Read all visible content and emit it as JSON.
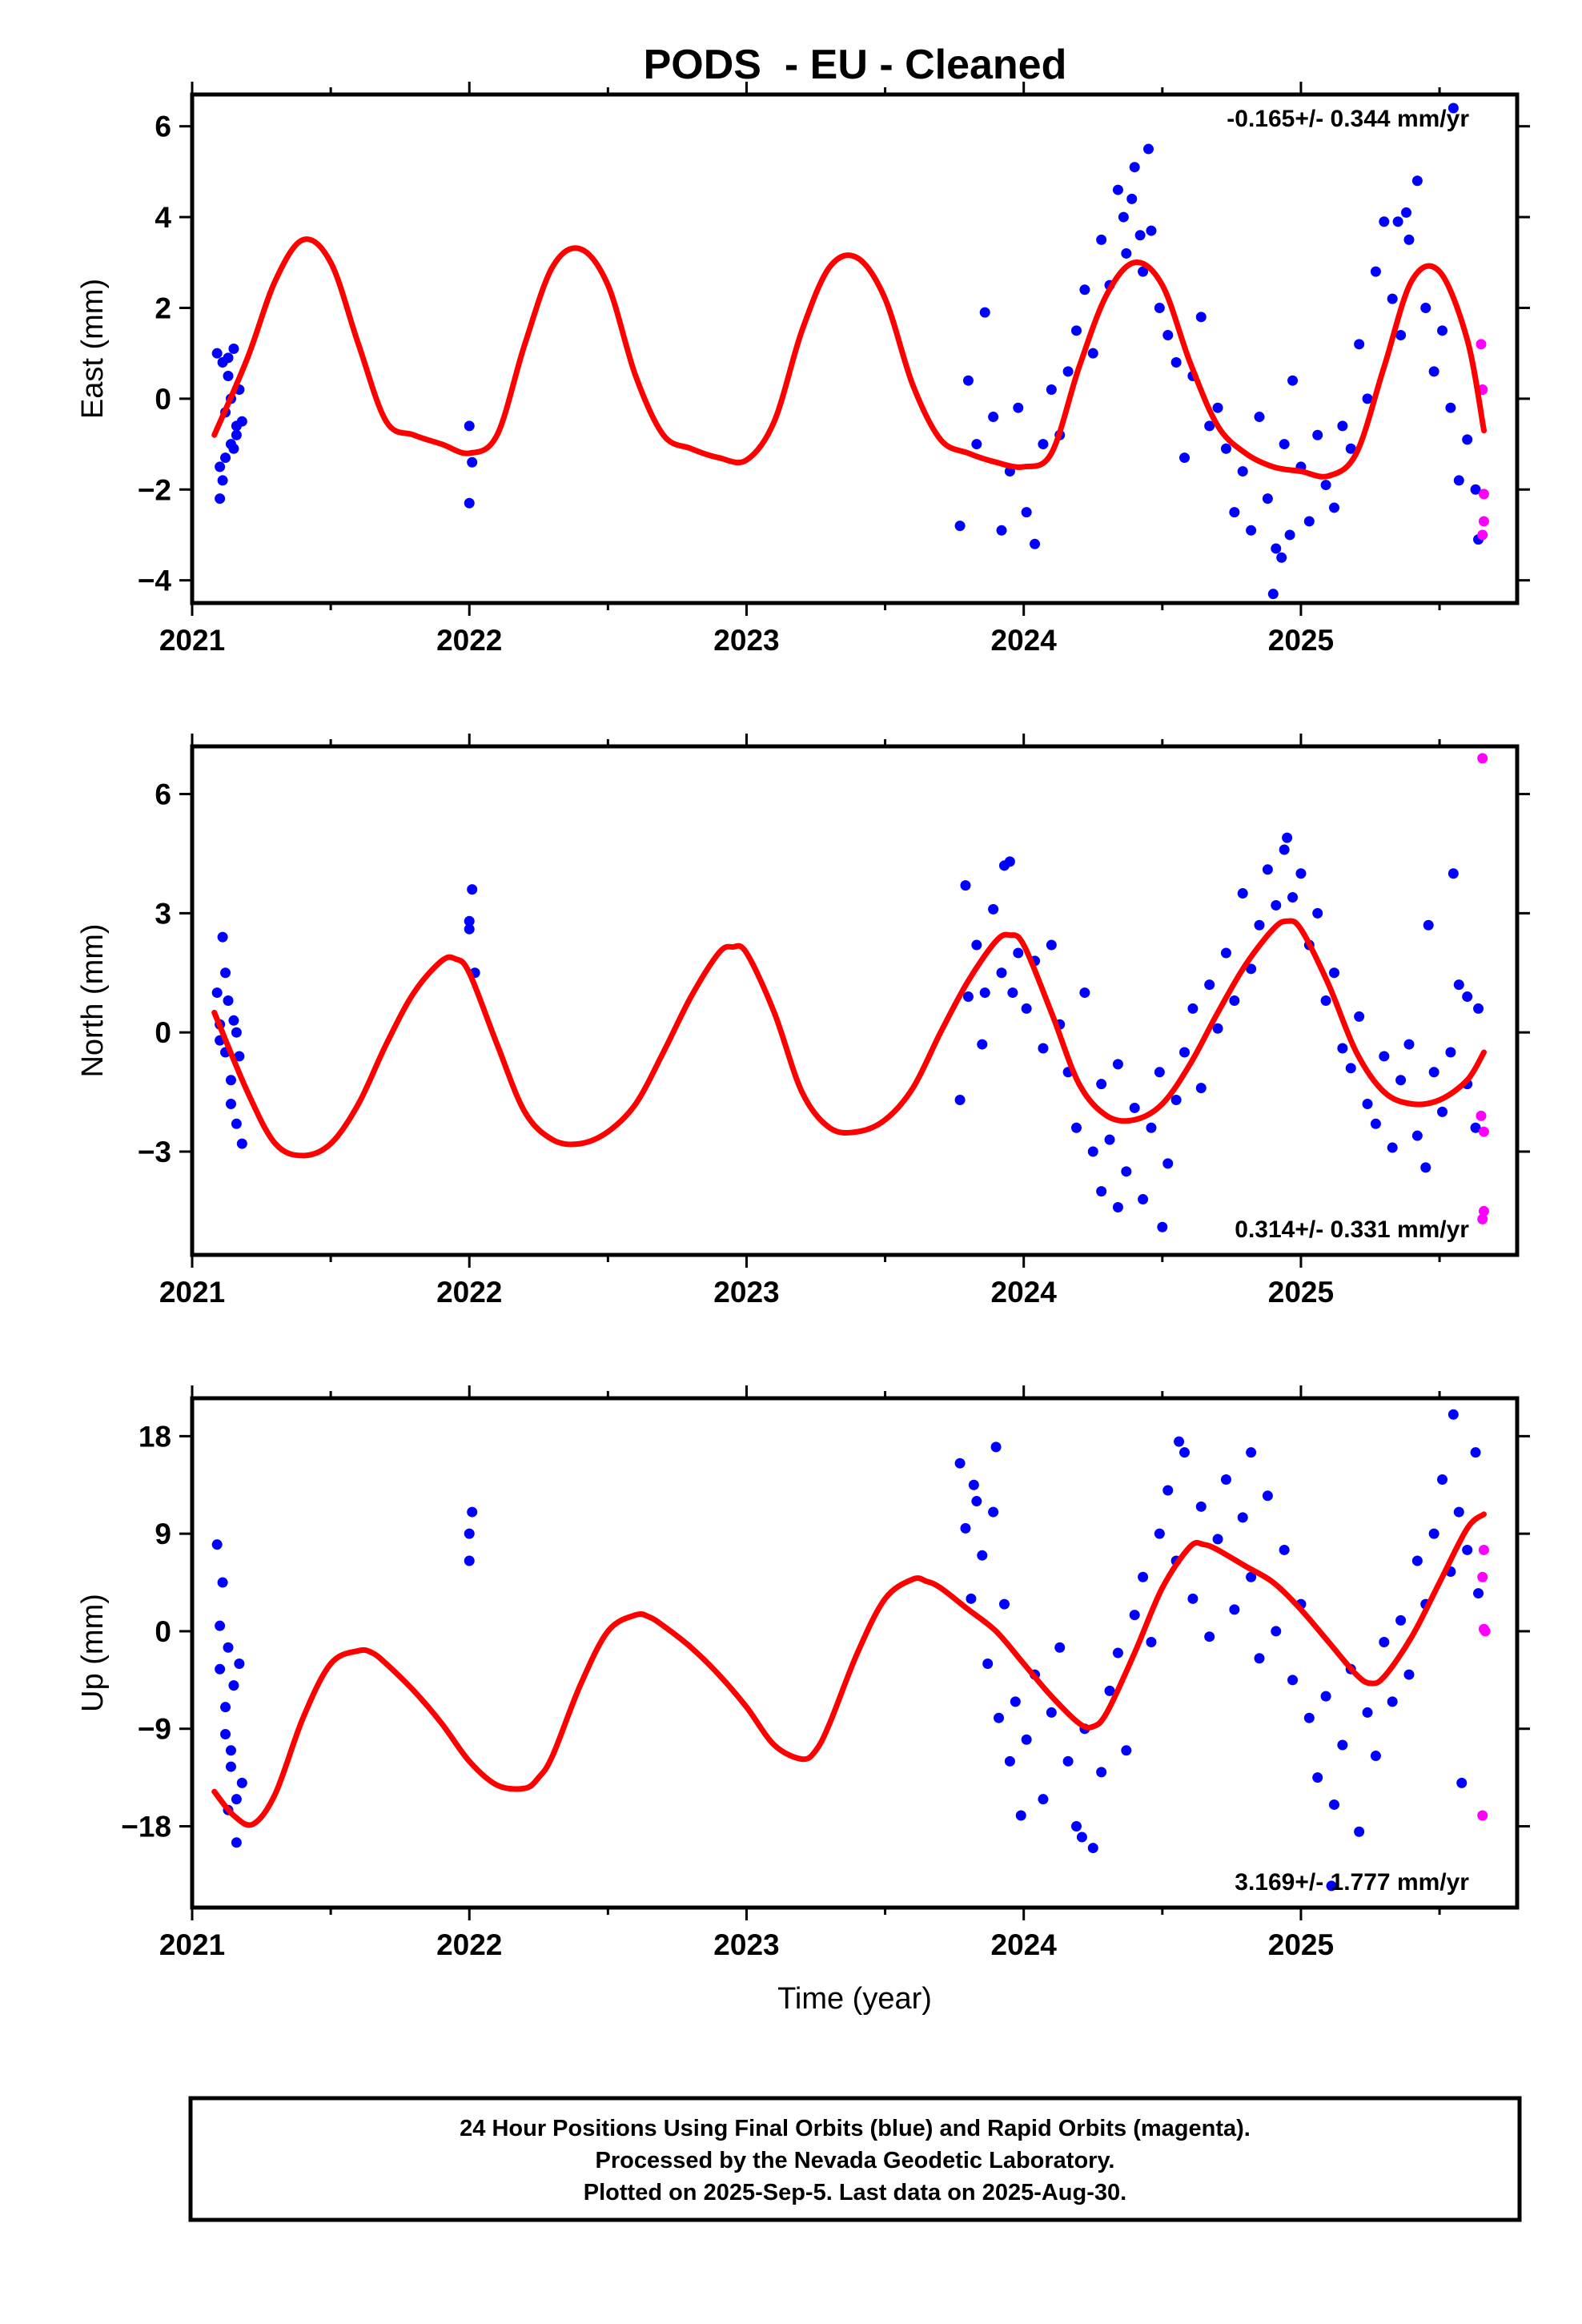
{
  "figure": {
    "title": "PODS  - EU - Cleaned",
    "footer_lines": [
      "24 Hour Positions Using Final Orbits (blue) and Rapid Orbits (magenta).",
      "Processed by the Nevada Geodetic Laboratory.",
      "Plotted on 2025-Sep-5. Last data on 2025-Aug-30."
    ],
    "colors": {
      "final_orbits": "#0000ff",
      "rapid_orbits": "#ff00ff",
      "model_fit": "#ff0000",
      "frame": "#000000"
    }
  },
  "chart_data": [
    {
      "type": "scatter",
      "xlabel": "",
      "ylabel": "East (mm)",
      "xlim": [
        2021.0,
        2025.78
      ],
      "ylim": [
        -4.5,
        6.7
      ],
      "xticks": [
        2021,
        2022,
        2023,
        2024,
        2025
      ],
      "yticks": [
        -4,
        -2,
        0,
        2,
        4,
        6
      ],
      "rate_label": "-0.165+/- 0.344 mm/yr",
      "rate_position": "top-right",
      "fit_series": {
        "x": [
          2021.08,
          2021.2,
          2021.3,
          2021.4,
          2021.5,
          2021.6,
          2021.7,
          2021.8,
          2021.9,
          2022.0,
          2022.1,
          2022.2,
          2022.3,
          2022.4,
          2022.5,
          2022.6,
          2022.7,
          2022.8,
          2022.9,
          2023.0,
          2023.1,
          2023.2,
          2023.3,
          2023.4,
          2023.5,
          2023.6,
          2023.7,
          2023.8,
          2023.9,
          2024.0,
          2024.1,
          2024.2,
          2024.3,
          2024.4,
          2024.5,
          2024.6,
          2024.7,
          2024.8,
          2024.9,
          2025.0,
          2025.1,
          2025.2,
          2025.3,
          2025.4,
          2025.5,
          2025.6,
          2025.66
        ],
        "y": [
          -0.8,
          0.9,
          2.6,
          3.5,
          3.0,
          1.2,
          -0.5,
          -0.8,
          -1.0,
          -1.2,
          -0.8,
          1.2,
          2.9,
          3.3,
          2.5,
          0.5,
          -0.8,
          -1.1,
          -1.3,
          -1.35,
          -0.5,
          1.5,
          2.9,
          3.1,
          2.2,
          0.3,
          -0.9,
          -1.2,
          -1.4,
          -1.5,
          -1.2,
          0.7,
          2.3,
          3.0,
          2.5,
          0.8,
          -0.6,
          -1.2,
          -1.5,
          -1.6,
          -1.7,
          -1.2,
          0.7,
          2.6,
          2.8,
          1.3,
          -0.7
        ]
      },
      "final_points": {
        "x": [
          2021.09,
          2021.1,
          2021.11,
          2021.12,
          2021.13,
          2021.14,
          2021.15,
          2021.16,
          2021.17,
          2021.18,
          2021.1,
          2021.12,
          2021.14,
          2021.16,
          2021.11,
          2021.13,
          2021.15,
          2022.0,
          2022.01,
          2022.0,
          2023.77,
          2023.8,
          2023.83,
          2023.86,
          2023.89,
          2023.92,
          2023.95,
          2023.98,
          2024.01,
          2024.04,
          2024.07,
          2024.1,
          2024.13,
          2024.16,
          2024.19,
          2024.22,
          2024.25,
          2024.28,
          2024.31,
          2024.34,
          2024.37,
          2024.4,
          2024.43,
          2024.46,
          2024.49,
          2024.52,
          2024.55,
          2024.58,
          2024.61,
          2024.64,
          2024.67,
          2024.7,
          2024.73,
          2024.76,
          2024.79,
          2024.82,
          2024.85,
          2024.88,
          2024.91,
          2024.94,
          2024.97,
          2025.0,
          2025.03,
          2025.06,
          2025.09,
          2025.12,
          2025.15,
          2025.18,
          2025.21,
          2025.24,
          2025.27,
          2025.3,
          2025.33,
          2025.36,
          2025.39,
          2025.42,
          2025.45,
          2025.48,
          2025.51,
          2025.54,
          2025.57,
          2025.6,
          2025.63,
          2025.64,
          2024.36,
          2024.39,
          2024.42,
          2024.45,
          2025.35,
          2025.38,
          2024.9,
          2024.93,
          2024.96,
          2025.55
        ],
        "y": [
          1.0,
          -1.5,
          0.8,
          -0.3,
          0.5,
          -1.0,
          1.1,
          -0.8,
          0.2,
          -0.5,
          -2.2,
          -1.3,
          0.0,
          -0.6,
          -1.8,
          0.9,
          -1.1,
          -0.6,
          -1.4,
          -2.3,
          -2.8,
          0.4,
          -1.0,
          1.9,
          -0.4,
          -2.9,
          -1.6,
          -0.2,
          -2.5,
          -3.2,
          -1.0,
          0.2,
          -0.8,
          0.6,
          1.5,
          2.4,
          1.0,
          3.5,
          2.5,
          4.6,
          3.2,
          5.1,
          2.8,
          3.7,
          2.0,
          1.4,
          0.8,
          -1.3,
          0.5,
          1.8,
          -0.6,
          -0.2,
          -1.1,
          -2.5,
          -1.6,
          -2.9,
          -0.4,
          -2.2,
          -3.3,
          -1.0,
          0.4,
          -1.5,
          -2.7,
          -0.8,
          -1.9,
          -2.4,
          -0.6,
          -1.1,
          1.2,
          0.0,
          2.8,
          3.9,
          2.2,
          1.4,
          3.5,
          4.8,
          2.0,
          0.6,
          1.5,
          -0.2,
          -1.8,
          -0.9,
          -2.0,
          -3.1,
          4.0,
          4.4,
          3.6,
          5.5,
          3.9,
          4.1,
          -4.3,
          -3.5,
          -3.0,
          6.4
        ]
      },
      "rapid_points": {
        "x": [
          2025.65,
          2025.655,
          2025.66,
          2025.66,
          2025.655
        ],
        "y": [
          1.2,
          0.2,
          -2.1,
          -2.7,
          -3.0
        ]
      }
    },
    {
      "type": "scatter",
      "xlabel": "",
      "ylabel": "North (mm)",
      "xlim": [
        2021.0,
        2025.78
      ],
      "ylim": [
        -5.6,
        7.2
      ],
      "xticks": [
        2021,
        2022,
        2023,
        2024,
        2025
      ],
      "yticks": [
        -3,
        0,
        3,
        6
      ],
      "rate_label": "0.314+/- 0.331 mm/yr",
      "rate_position": "bottom-right",
      "fit_series": {
        "x": [
          2021.08,
          2021.2,
          2021.3,
          2021.4,
          2021.5,
          2021.6,
          2021.7,
          2021.8,
          2021.9,
          2021.95,
          2022.0,
          2022.1,
          2022.2,
          2022.3,
          2022.4,
          2022.5,
          2022.6,
          2022.7,
          2022.8,
          2022.9,
          2022.95,
          2023.0,
          2023.1,
          2023.2,
          2023.3,
          2023.4,
          2023.5,
          2023.6,
          2023.7,
          2023.8,
          2023.9,
          2023.95,
          2024.0,
          2024.1,
          2024.2,
          2024.3,
          2024.4,
          2024.5,
          2024.6,
          2024.7,
          2024.8,
          2024.9,
          2024.95,
          2025.0,
          2025.1,
          2025.2,
          2025.3,
          2025.4,
          2025.5,
          2025.6,
          2025.66
        ],
        "y": [
          0.5,
          -1.5,
          -2.8,
          -3.1,
          -2.8,
          -1.8,
          -0.3,
          1.0,
          1.8,
          1.85,
          1.5,
          -0.3,
          -2.0,
          -2.7,
          -2.8,
          -2.5,
          -1.8,
          -0.5,
          0.9,
          2.0,
          2.15,
          2.0,
          0.5,
          -1.5,
          -2.4,
          -2.5,
          -2.2,
          -1.4,
          0.0,
          1.3,
          2.3,
          2.45,
          2.2,
          0.5,
          -1.3,
          -2.1,
          -2.2,
          -1.8,
          -0.8,
          0.5,
          1.7,
          2.6,
          2.8,
          2.6,
          1.2,
          -0.5,
          -1.5,
          -1.8,
          -1.7,
          -1.2,
          -0.5
        ]
      },
      "final_points": {
        "x": [
          2021.09,
          2021.1,
          2021.11,
          2021.12,
          2021.13,
          2021.14,
          2021.15,
          2021.16,
          2021.17,
          2021.18,
          2021.12,
          2021.14,
          2021.16,
          2021.1,
          2022.0,
          2022.01,
          2022.02,
          2022.0,
          2023.77,
          2023.8,
          2023.83,
          2023.86,
          2023.89,
          2023.92,
          2023.95,
          2023.98,
          2024.01,
          2024.04,
          2024.07,
          2024.1,
          2024.13,
          2024.16,
          2024.19,
          2024.22,
          2024.25,
          2024.28,
          2024.31,
          2024.34,
          2024.37,
          2024.4,
          2024.43,
          2024.46,
          2024.49,
          2024.52,
          2024.55,
          2024.58,
          2024.61,
          2024.64,
          2024.67,
          2024.7,
          2024.73,
          2024.76,
          2024.79,
          2024.82,
          2024.85,
          2024.88,
          2024.91,
          2024.94,
          2024.97,
          2025.0,
          2025.03,
          2025.06,
          2025.09,
          2025.12,
          2025.15,
          2025.18,
          2025.21,
          2025.24,
          2025.27,
          2025.3,
          2025.33,
          2025.36,
          2025.39,
          2025.42,
          2025.45,
          2025.48,
          2025.51,
          2025.54,
          2025.57,
          2025.6,
          2025.63,
          2025.64,
          2023.79,
          2023.85,
          2023.93,
          2023.96,
          2024.28,
          2024.34,
          2024.5,
          2024.95,
          2025.46,
          2025.55,
          2025.6
        ],
        "y": [
          1.0,
          0.2,
          2.4,
          -0.5,
          0.8,
          -1.2,
          0.3,
          -2.3,
          -0.6,
          -2.8,
          1.5,
          -1.8,
          0.0,
          -0.2,
          2.8,
          3.6,
          1.5,
          2.6,
          -1.7,
          0.9,
          2.2,
          1.0,
          3.1,
          1.5,
          4.3,
          2.0,
          0.6,
          1.8,
          -0.4,
          2.2,
          0.2,
          -1.0,
          -2.4,
          1.0,
          -3.0,
          -1.3,
          -2.7,
          -0.8,
          -3.5,
          -1.9,
          -4.2,
          -2.4,
          -1.0,
          -3.3,
          -1.7,
          -0.5,
          0.6,
          -1.4,
          1.2,
          0.1,
          2.0,
          0.8,
          3.5,
          1.6,
          2.7,
          4.1,
          3.2,
          4.6,
          3.4,
          4.0,
          2.2,
          3.0,
          0.8,
          1.5,
          -0.4,
          -0.9,
          0.4,
          -1.8,
          -2.3,
          -0.6,
          -2.9,
          -1.2,
          -0.3,
          -2.6,
          -3.4,
          -1.0,
          -2.0,
          -0.5,
          1.2,
          -1.3,
          -2.4,
          0.6,
          3.7,
          -0.3,
          4.2,
          1.0,
          -4.0,
          -4.4,
          -4.9,
          4.9,
          2.7,
          4.0,
          0.9
        ]
      },
      "rapid_points": {
        "x": [
          2025.655,
          2025.65,
          2025.66,
          2025.66,
          2025.655
        ],
        "y": [
          6.9,
          -2.1,
          -2.5,
          -4.5,
          -4.7
        ]
      }
    },
    {
      "type": "scatter",
      "xlabel": "Time (year)",
      "ylabel": "Up (mm)",
      "xlim": [
        2021.0,
        2025.78
      ],
      "ylim": [
        -25.5,
        21.5
      ],
      "xticks": [
        2021,
        2022,
        2023,
        2024,
        2025
      ],
      "yticks": [
        -18,
        -9,
        0,
        9,
        18
      ],
      "rate_label": "3.169+/- 1.777 mm/yr",
      "rate_position": "bottom-right",
      "fit_series": {
        "x": [
          2021.08,
          2021.15,
          2021.22,
          2021.3,
          2021.4,
          2021.5,
          2021.6,
          2021.65,
          2021.7,
          2021.8,
          2021.9,
          2022.0,
          2022.1,
          2022.2,
          2022.25,
          2022.3,
          2022.4,
          2022.5,
          2022.6,
          2022.65,
          2022.7,
          2022.8,
          2022.9,
          2023.0,
          2023.1,
          2023.2,
          2023.25,
          2023.3,
          2023.4,
          2023.5,
          2023.6,
          2023.65,
          2023.7,
          2023.8,
          2023.9,
          2024.0,
          2024.1,
          2024.2,
          2024.25,
          2024.3,
          2024.4,
          2024.5,
          2024.6,
          2024.65,
          2024.7,
          2024.8,
          2024.9,
          2025.0,
          2025.1,
          2025.2,
          2025.25,
          2025.3,
          2025.4,
          2025.5,
          2025.6,
          2025.66
        ],
        "y": [
          -14.8,
          -17.0,
          -17.8,
          -15.0,
          -8.0,
          -3.0,
          -1.8,
          -2.0,
          -3.0,
          -5.5,
          -8.5,
          -12.0,
          -14.2,
          -14.5,
          -13.5,
          -11.5,
          -5.0,
          0.0,
          1.5,
          1.3,
          0.5,
          -1.5,
          -4.0,
          -7.0,
          -10.5,
          -11.8,
          -11.0,
          -8.5,
          -2.0,
          3.0,
          4.8,
          4.6,
          4.0,
          2.0,
          0.0,
          -3.0,
          -6.0,
          -8.5,
          -8.8,
          -7.5,
          -2.0,
          4.0,
          7.8,
          8.0,
          7.5,
          6.0,
          4.5,
          2.0,
          -1.0,
          -4.0,
          -4.8,
          -4.2,
          -0.5,
          4.5,
          9.5,
          10.8
        ]
      },
      "final_points": {
        "x": [
          2021.09,
          2021.1,
          2021.11,
          2021.12,
          2021.13,
          2021.14,
          2021.15,
          2021.16,
          2021.17,
          2021.18,
          2021.1,
          2021.12,
          2021.14,
          2021.16,
          2021.13,
          2022.0,
          2022.01,
          2022.0,
          2023.77,
          2023.79,
          2023.81,
          2023.83,
          2023.85,
          2023.87,
          2023.89,
          2023.91,
          2023.93,
          2023.95,
          2023.97,
          2023.99,
          2024.01,
          2024.04,
          2024.07,
          2024.1,
          2024.13,
          2024.16,
          2024.19,
          2024.22,
          2024.25,
          2024.28,
          2024.31,
          2024.34,
          2024.37,
          2024.4,
          2024.43,
          2024.46,
          2024.49,
          2024.52,
          2024.55,
          2024.58,
          2024.61,
          2024.64,
          2024.67,
          2024.7,
          2024.73,
          2024.76,
          2024.79,
          2024.82,
          2024.85,
          2024.88,
          2024.91,
          2024.94,
          2024.97,
          2025.0,
          2025.03,
          2025.06,
          2025.09,
          2025.12,
          2025.15,
          2025.18,
          2025.21,
          2025.24,
          2025.27,
          2025.3,
          2025.33,
          2025.36,
          2025.39,
          2025.42,
          2025.45,
          2025.48,
          2025.51,
          2025.54,
          2025.57,
          2025.6,
          2025.63,
          2025.64,
          2023.82,
          2023.9,
          2024.21,
          2024.56,
          2024.82,
          2025.11,
          2025.55,
          2025.58
        ],
        "y": [
          8.0,
          -3.5,
          4.5,
          -9.5,
          -1.5,
          -12.5,
          -5.0,
          -15.5,
          -3.0,
          -14.0,
          0.5,
          -7.0,
          -11.0,
          -19.5,
          -16.5,
          6.5,
          11.0,
          9.0,
          15.5,
          9.5,
          3.0,
          12.0,
          7.0,
          -3.0,
          11.0,
          -8.0,
          2.5,
          -12.0,
          -6.5,
          -17.0,
          -10.0,
          -4.0,
          -15.5,
          -7.5,
          -1.5,
          -12.0,
          -18.0,
          -9.0,
          -20.0,
          -13.0,
          -5.5,
          -2.0,
          -11.0,
          1.5,
          5.0,
          -1.0,
          9.0,
          13.0,
          6.5,
          16.5,
          3.0,
          11.5,
          -0.5,
          8.5,
          14.0,
          2.0,
          10.5,
          5.0,
          -2.5,
          12.5,
          0.0,
          7.5,
          -4.5,
          2.5,
          -8.0,
          -13.5,
          -6.0,
          -16.0,
          -10.5,
          -3.5,
          -18.5,
          -7.5,
          -11.5,
          -1.0,
          -6.5,
          1.0,
          -4.0,
          6.5,
          2.5,
          9.0,
          14.0,
          5.5,
          11.0,
          7.5,
          16.5,
          3.5,
          13.5,
          17.0,
          -19.0,
          17.5,
          16.5,
          -23.5,
          20.0,
          -14.0
        ]
      },
      "rapid_points": {
        "x": [
          2025.66,
          2025.655,
          2025.66,
          2025.665,
          2025.655
        ],
        "y": [
          7.5,
          5.0,
          0.2,
          0.0,
          -17.0
        ]
      }
    }
  ]
}
